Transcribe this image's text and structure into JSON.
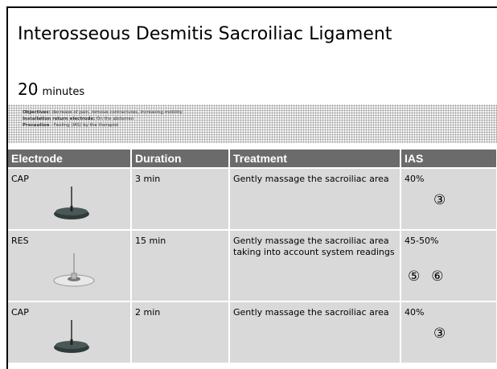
{
  "title": "Interosseous Desmitis Sacroiliac Ligament",
  "duration": {
    "value": "20",
    "unit": "minutes"
  },
  "info": [
    {
      "label": "Objectives:",
      "text": " decrease of pain, remove contractures, increasing mobility"
    },
    {
      "label": "Installation return electrode:",
      "text": " On the abdomen"
    },
    {
      "label": "Precaution",
      "text": " : Feeling (IAS) by the therapist"
    }
  ],
  "table": {
    "columns": [
      "Electrode",
      "Duration",
      "Treatment",
      "IAS"
    ],
    "rows": [
      {
        "electrode": "CAP",
        "duration": "3 min",
        "treatment": "Gently massage the sacroiliac area",
        "ias": "40%",
        "markers": [
          "③"
        ]
      },
      {
        "electrode": "RES",
        "duration": "15 min",
        "treatment": "Gently massage the sacroiliac area taking into account system readings",
        "ias": "45-50%",
        "markers": [
          "⑤",
          "⑥"
        ]
      },
      {
        "electrode": "CAP",
        "duration": "2 min",
        "treatment": "Gently massage the sacroiliac area",
        "ias": "40%",
        "markers": [
          "③"
        ]
      }
    ]
  }
}
